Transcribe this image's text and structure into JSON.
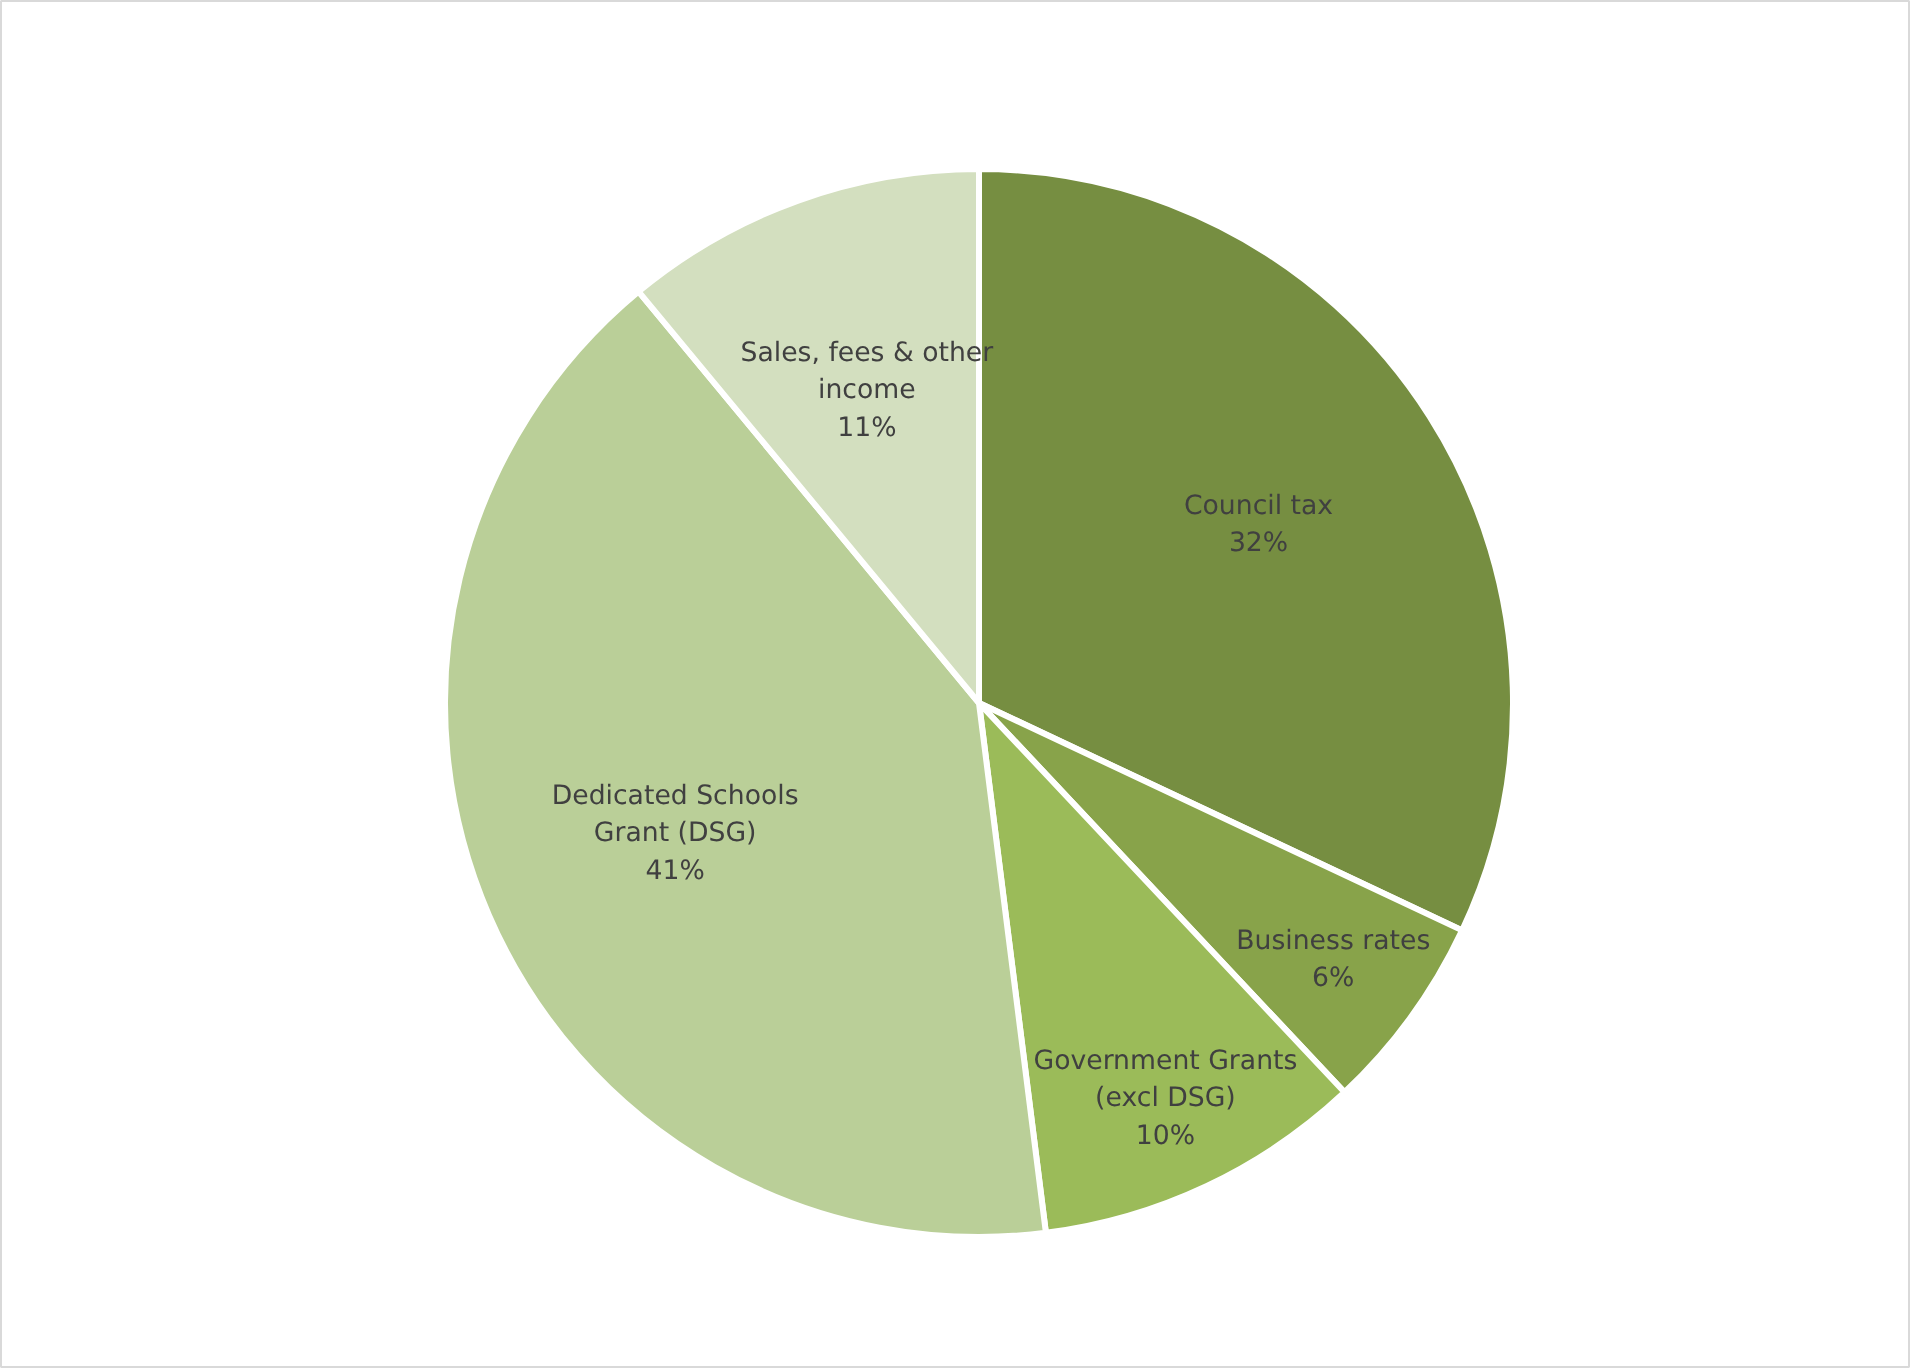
{
  "chart_data": {
    "type": "pie",
    "categories": [
      "Council tax",
      "Business rates",
      "Government Grants (excl DSG)",
      "Dedicated Schools Grant (DSG)",
      "Sales, fees & other income"
    ],
    "values": [
      32,
      6,
      10,
      41,
      11
    ],
    "colors": [
      "#768e41",
      "#88a34a",
      "#9bbb59",
      "#bacf98",
      "#d3dfbf"
    ],
    "value_labels": [
      "32%",
      "6%",
      "10%",
      "41%",
      "11%"
    ]
  }
}
